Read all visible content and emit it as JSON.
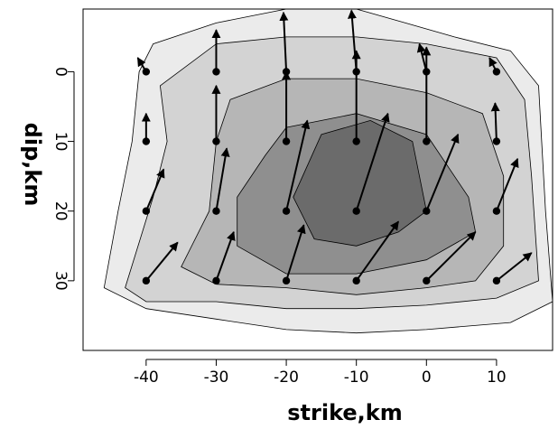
{
  "chart_data": {
    "type": "contour",
    "xlabel": "strike,km",
    "ylabel": "dip,km",
    "x_ticks": [
      -40,
      -30,
      -20,
      -10,
      0,
      10
    ],
    "y_ticks": [
      0,
      10,
      20,
      30
    ],
    "xlim": [
      -49,
      18
    ],
    "ylim": [
      -9,
      40
    ],
    "y_inverted": true,
    "contour_fills": [
      "#ebebeb",
      "#d3d3d3",
      "#b6b6b6",
      "#8f8f8f",
      "#6b6b6b"
    ],
    "contours": [
      [
        [
          -30,
          -7
        ],
        [
          -20,
          -9
        ],
        [
          -10,
          -9
        ],
        [
          -3,
          -7
        ],
        [
          4,
          -5
        ],
        [
          12,
          -3
        ],
        [
          16,
          2
        ],
        [
          17,
          20
        ],
        [
          18,
          33
        ],
        [
          12,
          36
        ],
        [
          0,
          37
        ],
        [
          -10,
          37.5
        ],
        [
          -20,
          37
        ],
        [
          -30,
          35.5
        ],
        [
          -40,
          34
        ],
        [
          -46,
          31
        ],
        [
          -44,
          20
        ],
        [
          -42,
          10
        ],
        [
          -41,
          0
        ],
        [
          -39,
          -4
        ]
      ],
      [
        [
          -38,
          2
        ],
        [
          -30,
          -4
        ],
        [
          -20,
          -5
        ],
        [
          -10,
          -5
        ],
        [
          0,
          -4
        ],
        [
          10,
          -2
        ],
        [
          14,
          4
        ],
        [
          15,
          15
        ],
        [
          16,
          30
        ],
        [
          10,
          32.5
        ],
        [
          0,
          33.5
        ],
        [
          -10,
          34
        ],
        [
          -20,
          34
        ],
        [
          -30,
          33
        ],
        [
          -40,
          33
        ],
        [
          -43,
          31
        ],
        [
          -39,
          18
        ],
        [
          -37,
          10
        ]
      ],
      [
        [
          -28,
          4
        ],
        [
          -20,
          1
        ],
        [
          -10,
          1
        ],
        [
          0,
          3
        ],
        [
          8,
          6
        ],
        [
          11,
          15
        ],
        [
          11,
          25
        ],
        [
          7,
          30
        ],
        [
          0,
          31
        ],
        [
          -10,
          32
        ],
        [
          -20,
          31
        ],
        [
          -30,
          30.5
        ],
        [
          -35,
          28
        ],
        [
          -31,
          20
        ],
        [
          -30,
          10
        ]
      ],
      [
        [
          -20,
          8
        ],
        [
          -10,
          6
        ],
        [
          0,
          9
        ],
        [
          6,
          18
        ],
        [
          7,
          23
        ],
        [
          0,
          27
        ],
        [
          -10,
          29
        ],
        [
          -20,
          29
        ],
        [
          -27,
          25
        ],
        [
          -27,
          18
        ],
        [
          -23,
          12
        ]
      ],
      [
        [
          -15,
          9
        ],
        [
          -8,
          7
        ],
        [
          -2,
          10
        ],
        [
          0,
          20
        ],
        [
          -4,
          23
        ],
        [
          -10,
          25
        ],
        [
          -16,
          24
        ],
        [
          -19,
          18
        ]
      ]
    ],
    "slip_vectors": [
      {
        "x": -40,
        "y": 0,
        "dx": -1.2,
        "dy": -2
      },
      {
        "x": -30,
        "y": 0,
        "dx": 0,
        "dy": -6
      },
      {
        "x": -20,
        "y": 0,
        "dx": -0.4,
        "dy": -8.5
      },
      {
        "x": -10,
        "y": 0,
        "dx": -0.7,
        "dy": -8.8
      },
      {
        "x": 0,
        "y": 0,
        "dx": -1,
        "dy": -4
      },
      {
        "x": 10,
        "y": 0,
        "dx": -1,
        "dy": -2
      },
      {
        "x": -40,
        "y": 10,
        "dx": 0,
        "dy": -4
      },
      {
        "x": -30,
        "y": 10,
        "dx": 0,
        "dy": -8
      },
      {
        "x": -20,
        "y": 10,
        "dx": 0,
        "dy": -10
      },
      {
        "x": -10,
        "y": 10,
        "dx": 0,
        "dy": -13
      },
      {
        "x": 0,
        "y": 10,
        "dx": 0,
        "dy": -13.5
      },
      {
        "x": 10,
        "y": 10,
        "dx": -0.2,
        "dy": -5.5
      },
      {
        "x": -40,
        "y": 20,
        "dx": 2.5,
        "dy": -6
      },
      {
        "x": -30,
        "y": 20,
        "dx": 1.5,
        "dy": -9
      },
      {
        "x": -20,
        "y": 20,
        "dx": 3,
        "dy": -13
      },
      {
        "x": -10,
        "y": 20,
        "dx": 4.5,
        "dy": -14
      },
      {
        "x": 0,
        "y": 20,
        "dx": 4.5,
        "dy": -11
      },
      {
        "x": 10,
        "y": 20,
        "dx": 3,
        "dy": -7.5
      },
      {
        "x": -40,
        "y": 30,
        "dx": 4.5,
        "dy": -5.5
      },
      {
        "x": -30,
        "y": 30,
        "dx": 2.5,
        "dy": -7
      },
      {
        "x": -20,
        "y": 30,
        "dx": 2.5,
        "dy": -8
      },
      {
        "x": -10,
        "y": 30,
        "dx": 6,
        "dy": -8.5
      },
      {
        "x": 0,
        "y": 30,
        "dx": 7,
        "dy": -7
      },
      {
        "x": 10,
        "y": 30,
        "dx": 5,
        "dy": -4
      }
    ]
  }
}
